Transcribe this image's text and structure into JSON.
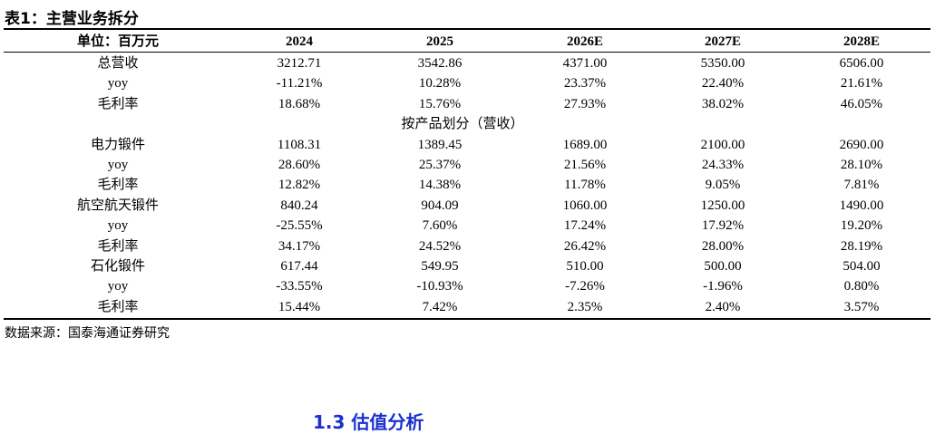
{
  "title": "表1：主营业务拆分",
  "table": {
    "header": [
      "单位：百万元",
      "2024",
      "2025",
      "2026E",
      "2027E",
      "2028E"
    ],
    "rows": [
      [
        "总营收",
        "3212.71",
        "3542.86",
        "4371.00",
        "5350.00",
        "6506.00"
      ],
      [
        "yoy",
        "-11.21%",
        "10.28%",
        "23.37%",
        "22.40%",
        "21.61%"
      ],
      [
        "毛利率",
        "18.68%",
        "15.76%",
        "27.93%",
        "38.02%",
        "46.05%"
      ],
      [
        "按产品划分（营收）"
      ],
      [
        "电力锻件",
        "1108.31",
        "1389.45",
        "1689.00",
        "2100.00",
        "2690.00"
      ],
      [
        "yoy",
        "28.60%",
        "25.37%",
        "21.56%",
        "24.33%",
        "28.10%"
      ],
      [
        "毛利率",
        "12.82%",
        "14.38%",
        "11.78%",
        "9.05%",
        "7.81%"
      ],
      [
        "航空航天锻件",
        "840.24",
        "904.09",
        "1060.00",
        "1250.00",
        "1490.00"
      ],
      [
        "yoy",
        "-25.55%",
        "7.60%",
        "17.24%",
        "17.92%",
        "19.20%"
      ],
      [
        "毛利率",
        "34.17%",
        "24.52%",
        "26.42%",
        "28.00%",
        "28.19%"
      ],
      [
        "石化锻件",
        "617.44",
        "549.95",
        "510.00",
        "500.00",
        "504.00"
      ],
      [
        "yoy",
        "-33.55%",
        "-10.93%",
        "-7.26%",
        "-1.96%",
        "0.80%"
      ],
      [
        "毛利率",
        "15.44%",
        "7.42%",
        "2.35%",
        "2.40%",
        "3.57%"
      ]
    ]
  },
  "source": "数据来源：国泰海通证券研究",
  "next_heading": "1.3 估值分析"
}
